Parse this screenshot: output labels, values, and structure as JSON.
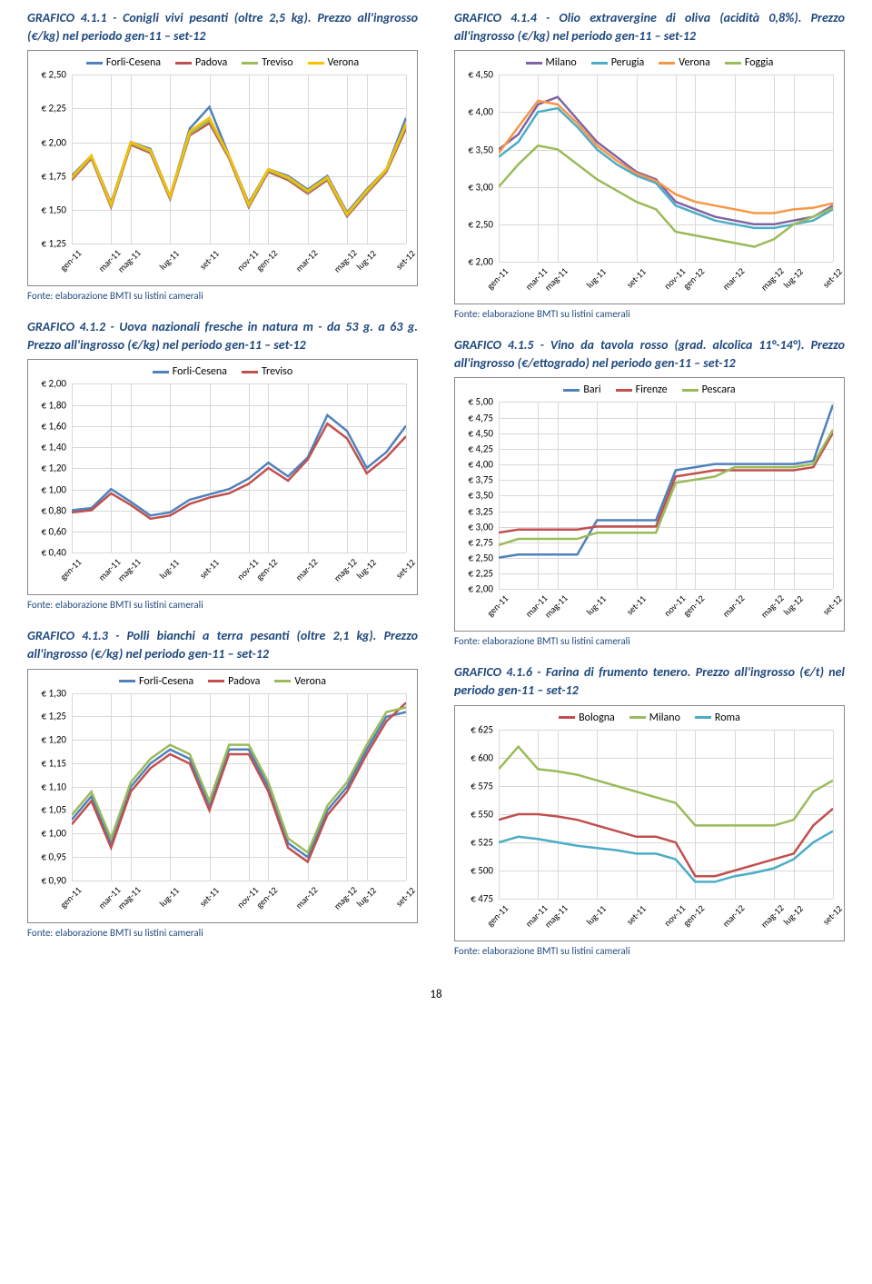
{
  "page_number": "18",
  "x_categories": [
    "gen-11",
    "mar-11",
    "mag-11",
    "lug-11",
    "set-11",
    "nov-11",
    "gen-12",
    "mar-12",
    "mag-12",
    "lug-12",
    "set-12"
  ],
  "charts": {
    "c1": {
      "title": "GRAFICO 4.1.1 - Conigli vivi pesanti (oltre 2,5 kg). Prezzo all'ingrosso (€/kg) nel periodo gen-11 – set-12",
      "source": "Fonte: elaborazione BMTI su listini camerali",
      "y_min": 1.25,
      "y_max": 2.5,
      "y_step": 0.25,
      "y_prefix": "€ ",
      "y_decimals": 2,
      "series": [
        {
          "name": "Forli-Cesena",
          "color": "#4f81bd",
          "values": [
            1.75,
            1.9,
            1.55,
            2.0,
            1.95,
            1.6,
            2.1,
            2.26,
            1.9,
            1.55,
            1.8,
            1.75,
            1.65,
            1.75,
            1.48,
            1.65,
            1.8,
            2.18
          ]
        },
        {
          "name": "Padova",
          "color": "#c0504d",
          "values": [
            1.72,
            1.88,
            1.52,
            1.98,
            1.92,
            1.58,
            2.05,
            2.14,
            1.88,
            1.52,
            1.78,
            1.72,
            1.62,
            1.72,
            1.45,
            1.62,
            1.78,
            2.1
          ]
        },
        {
          "name": "Treviso",
          "color": "#9bbb59",
          "values": [
            1.73,
            1.89,
            1.53,
            1.99,
            1.93,
            1.59,
            2.06,
            2.16,
            1.89,
            1.53,
            1.79,
            1.73,
            1.63,
            1.73,
            1.46,
            1.63,
            1.79,
            2.12
          ]
        },
        {
          "name": "Verona",
          "color": "#f8c000",
          "values": [
            1.74,
            1.9,
            1.54,
            2.0,
            1.94,
            1.6,
            2.08,
            2.18,
            1.9,
            1.54,
            1.8,
            1.74,
            1.64,
            1.74,
            1.47,
            1.64,
            1.8,
            2.14
          ]
        }
      ]
    },
    "c2": {
      "title": "GRAFICO 4.1.2 - Uova nazionali fresche in natura m - da 53 g. a 63 g. Prezzo all'ingrosso (€/kg) nel periodo gen-11 – set-12",
      "source": "Fonte: elaborazione BMTI su listini camerali",
      "y_min": 0.4,
      "y_max": 2.0,
      "y_step": 0.2,
      "y_prefix": "€ ",
      "y_decimals": 2,
      "series": [
        {
          "name": "Forli-Cesena",
          "color": "#4f81bd",
          "values": [
            0.8,
            0.82,
            1.0,
            0.88,
            0.75,
            0.78,
            0.9,
            0.95,
            1.0,
            1.1,
            1.25,
            1.12,
            1.3,
            1.7,
            1.55,
            1.2,
            1.35,
            1.6
          ]
        },
        {
          "name": "Treviso",
          "color": "#c0504d",
          "values": [
            0.78,
            0.8,
            0.96,
            0.85,
            0.72,
            0.75,
            0.86,
            0.92,
            0.96,
            1.05,
            1.2,
            1.08,
            1.28,
            1.62,
            1.48,
            1.15,
            1.3,
            1.5
          ]
        }
      ]
    },
    "c3": {
      "title": "GRAFICO 4.1.3 - Polli bianchi a terra pesanti (oltre 2,1 kg). Prezzo all'ingrosso (€/kg) nel periodo gen-11 – set-12",
      "source": "Fonte: elaborazione BMTI su listini camerali",
      "y_min": 0.9,
      "y_max": 1.3,
      "y_step": 0.05,
      "y_prefix": "€ ",
      "y_decimals": 2,
      "series": [
        {
          "name": "Forli-Cesena",
          "color": "#4f81bd",
          "values": [
            1.03,
            1.08,
            0.98,
            1.1,
            1.15,
            1.18,
            1.16,
            1.06,
            1.18,
            1.18,
            1.1,
            0.98,
            0.95,
            1.05,
            1.1,
            1.18,
            1.25,
            1.26
          ]
        },
        {
          "name": "Padova",
          "color": "#c0504d",
          "values": [
            1.02,
            1.07,
            0.97,
            1.09,
            1.14,
            1.17,
            1.15,
            1.05,
            1.17,
            1.17,
            1.09,
            0.97,
            0.94,
            1.04,
            1.09,
            1.17,
            1.24,
            1.28
          ]
        },
        {
          "name": "Verona",
          "color": "#9bbb59",
          "values": [
            1.04,
            1.09,
            0.99,
            1.11,
            1.16,
            1.19,
            1.17,
            1.07,
            1.19,
            1.19,
            1.11,
            0.99,
            0.96,
            1.06,
            1.11,
            1.19,
            1.26,
            1.27
          ]
        }
      ]
    },
    "c4": {
      "title": "GRAFICO 4.1.4 - Olio extravergine di oliva (acidità 0,8%). Prezzo all'ingrosso (€/kg) nel periodo gen-11 – set-12",
      "source": "Fonte: elaborazione BMTI su listini camerali",
      "y_min": 2.0,
      "y_max": 4.5,
      "y_step": 0.5,
      "y_prefix": "€ ",
      "y_decimals": 2,
      "series": [
        {
          "name": "Milano",
          "color": "#8064a2",
          "values": [
            3.5,
            3.7,
            4.1,
            4.2,
            3.9,
            3.6,
            3.4,
            3.2,
            3.1,
            2.8,
            2.7,
            2.6,
            2.55,
            2.5,
            2.5,
            2.55,
            2.6,
            2.75
          ]
        },
        {
          "name": "Perugia",
          "color": "#4bacc6",
          "values": [
            3.4,
            3.6,
            4.0,
            4.05,
            3.8,
            3.5,
            3.3,
            3.15,
            3.05,
            2.75,
            2.65,
            2.55,
            2.5,
            2.45,
            2.45,
            2.5,
            2.55,
            2.7
          ]
        },
        {
          "name": "Verona",
          "color": "#f79646",
          "values": [
            3.45,
            3.8,
            4.15,
            4.1,
            3.85,
            3.55,
            3.35,
            3.18,
            3.08,
            2.9,
            2.8,
            2.75,
            2.7,
            2.65,
            2.65,
            2.7,
            2.72,
            2.78
          ]
        },
        {
          "name": "Foggia",
          "color": "#9bbb59",
          "values": [
            3.0,
            3.3,
            3.55,
            3.5,
            3.3,
            3.1,
            2.95,
            2.8,
            2.7,
            2.4,
            2.35,
            2.3,
            2.25,
            2.2,
            2.3,
            2.5,
            2.6,
            2.72
          ]
        }
      ]
    },
    "c5": {
      "title": "GRAFICO 4.1.5 - Vino da tavola rosso (grad. alcolica 11°-14°). Prezzo all'ingrosso (€/ettogrado) nel periodo gen-11 – set-12",
      "source": "Fonte: elaborazione BMTI su listini camerali",
      "y_min": 2.0,
      "y_max": 5.0,
      "y_step": 0.25,
      "y_prefix": "€ ",
      "y_decimals": 2,
      "series": [
        {
          "name": "Bari",
          "color": "#4f81bd",
          "values": [
            2.5,
            2.55,
            2.55,
            2.55,
            2.55,
            3.1,
            3.1,
            3.1,
            3.1,
            3.9,
            3.95,
            4.0,
            4.0,
            4.0,
            4.0,
            4.0,
            4.05,
            4.95
          ]
        },
        {
          "name": "Firenze",
          "color": "#c0504d",
          "values": [
            2.9,
            2.95,
            2.95,
            2.95,
            2.95,
            3.0,
            3.0,
            3.0,
            3.0,
            3.8,
            3.85,
            3.9,
            3.9,
            3.9,
            3.9,
            3.9,
            3.95,
            4.5
          ]
        },
        {
          "name": "Pescara",
          "color": "#9bbb59",
          "values": [
            2.7,
            2.8,
            2.8,
            2.8,
            2.8,
            2.9,
            2.9,
            2.9,
            2.9,
            3.7,
            3.75,
            3.8,
            3.95,
            3.95,
            3.95,
            3.95,
            4.0,
            4.55
          ]
        }
      ]
    },
    "c6": {
      "title": "GRAFICO 4.1.6 - Farina di frumento tenero. Prezzo all'ingrosso (€/t) nel periodo gen-11 – set-12",
      "source": "Fonte: elaborazione BMTI su listini camerali",
      "y_min": 475,
      "y_max": 625,
      "y_step": 25,
      "y_prefix": "€ ",
      "y_decimals": 0,
      "series": [
        {
          "name": "Bologna",
          "color": "#c0504d",
          "values": [
            545,
            550,
            550,
            548,
            545,
            540,
            535,
            530,
            530,
            525,
            495,
            495,
            500,
            505,
            510,
            515,
            540,
            555
          ]
        },
        {
          "name": "Milano",
          "color": "#9bbb59",
          "values": [
            590,
            610,
            590,
            588,
            585,
            580,
            575,
            570,
            565,
            560,
            540,
            540,
            540,
            540,
            540,
            545,
            570,
            580
          ]
        },
        {
          "name": "Roma",
          "color": "#4bacc6",
          "values": [
            525,
            530,
            528,
            525,
            522,
            520,
            518,
            515,
            515,
            510,
            490,
            490,
            495,
            498,
            502,
            510,
            525,
            535
          ]
        }
      ]
    }
  }
}
